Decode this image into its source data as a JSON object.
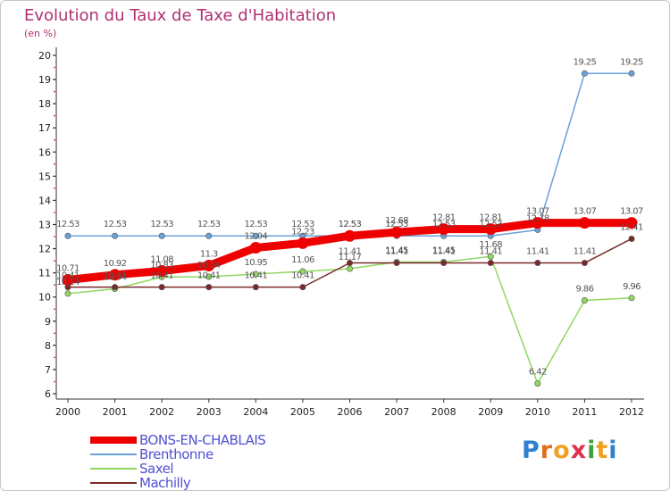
{
  "chart_data": {
    "type": "line",
    "title": "Evolution du Taux de Taxe d'Habitation",
    "subtitle": "(en %)",
    "xlabel": "",
    "ylabel": "",
    "x": [
      "2000",
      "2001",
      "2002",
      "2003",
      "2004",
      "2005",
      "2006",
      "2007",
      "2008",
      "2009",
      "2010",
      "2011",
      "2012"
    ],
    "ylim": [
      6,
      20
    ],
    "yticks": [
      "6",
      "7",
      "8",
      "9",
      "10",
      "11",
      "12",
      "13",
      "14",
      "15",
      "16",
      "17",
      "18",
      "19",
      "20"
    ],
    "grid": false,
    "legend_position": "bottom-left",
    "series": [
      {
        "name": "BONS-EN-CHABLAIS",
        "color": "#ee0000",
        "values": [
          10.71,
          10.92,
          11.08,
          11.3,
          12.04,
          12.23,
          12.53,
          12.68,
          12.81,
          12.81,
          13.07,
          13.07,
          13.07
        ],
        "labels": [
          "10.71",
          "10.92",
          "11.08",
          "11.3",
          "12.04",
          "12.23",
          "12.53",
          "12.68",
          "12.81",
          "12.81",
          "13.07",
          "13.07",
          "13.07"
        ]
      },
      {
        "name": "Brenthonne",
        "color": "#6aa0d8",
        "values": [
          12.53,
          12.53,
          12.53,
          12.53,
          12.53,
          12.53,
          12.53,
          12.53,
          12.53,
          12.53,
          12.78,
          19.25,
          19.25
        ],
        "labels": [
          "12.53",
          "12.53",
          "12.53",
          "12.53",
          "12.53",
          "12.53",
          "12.53",
          "12.53",
          "12.53",
          "12.53",
          "12.78",
          "19.25",
          "19.25"
        ]
      },
      {
        "name": "Saxel",
        "color": "#90d860",
        "values": [
          10.14,
          10.34,
          10.83,
          10.84,
          10.95,
          11.06,
          11.17,
          11.45,
          11.45,
          11.68,
          6.42,
          9.86,
          9.96
        ],
        "labels": [
          "10.14",
          "10.34",
          "10.83",
          "10.84",
          "10.95",
          "11.06",
          "11.17",
          "11.45",
          "11.45",
          "11.68",
          "6.42",
          "9.86",
          "9.96"
        ]
      },
      {
        "name": "Machilly",
        "color": "#7a2a2a",
        "values": [
          10.41,
          10.41,
          10.41,
          10.41,
          10.41,
          10.41,
          11.41,
          11.41,
          11.41,
          11.41,
          11.41,
          11.41,
          12.41
        ],
        "labels": [
          "10.41",
          "10.41",
          "10.41",
          "10.41",
          "10.41",
          "10.41",
          "11.41",
          "11.41",
          "11.41",
          "11.41",
          "11.41",
          "11.41",
          "12.41"
        ]
      }
    ]
  },
  "branding": {
    "letters": [
      "P",
      "r",
      "o",
      "x",
      "i",
      "t",
      "i"
    ],
    "colors": [
      "#3080d0",
      "#e07020",
      "#f0a020",
      "#e03050",
      "#40a040",
      "#f0a020",
      "#3080d0"
    ]
  }
}
